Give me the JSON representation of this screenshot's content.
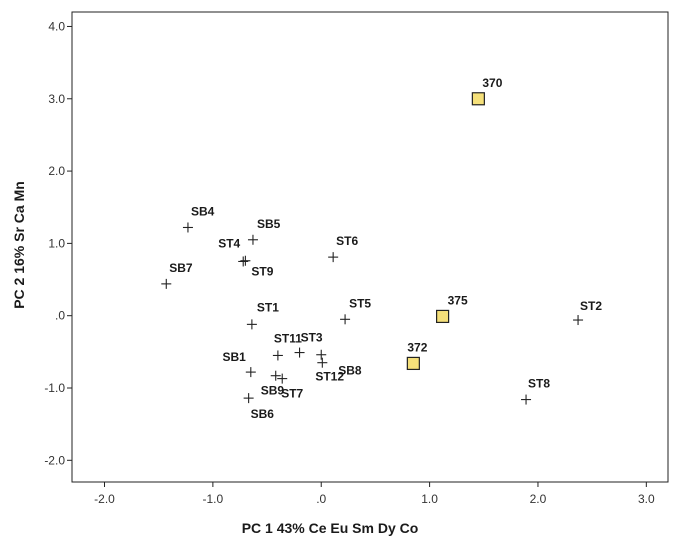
{
  "chart_data": {
    "type": "scatter",
    "title": "",
    "xlabel": "PC 1  43%  Ce Eu Sm Dy Co",
    "ylabel": "PC 2  16%  Sr Ca Mn",
    "xlim": [
      -2.3,
      3.2
    ],
    "ylim": [
      -2.3,
      4.2
    ],
    "x_ticks": [
      -2.0,
      -1.0,
      0.0,
      1.0,
      2.0,
      3.0
    ],
    "x_tick_labels": [
      "-2.0",
      "-1.0",
      ".0",
      "1.0",
      "2.0",
      "3.0"
    ],
    "y_ticks": [
      -2.0,
      -1.0,
      0.0,
      1.0,
      2.0,
      3.0,
      4.0
    ],
    "y_tick_labels": [
      "-2.0",
      "-1.0",
      ".0",
      "1.0",
      "2.0",
      "3.0",
      "4.0"
    ],
    "grid": false,
    "legend": "none",
    "colors": {
      "square_fill": "#f5e07a",
      "marker_stroke": "#222222"
    },
    "series": [
      {
        "marker": "plus",
        "points": [
          {
            "label": "SB4",
            "x": -1.23,
            "y": 1.22
          },
          {
            "label": "SB5",
            "x": -0.63,
            "y": 1.05
          },
          {
            "label": "ST4",
            "x": -0.72,
            "y": 0.75
          },
          {
            "label": "ST9",
            "x": -0.7,
            "y": 0.76
          },
          {
            "label": "SB7",
            "x": -1.43,
            "y": 0.44
          },
          {
            "label": "ST6",
            "x": 0.11,
            "y": 0.81
          },
          {
            "label": "ST1",
            "x": -0.64,
            "y": -0.12
          },
          {
            "label": "ST5",
            "x": 0.22,
            "y": -0.05
          },
          {
            "label": "ST11",
            "x": -0.4,
            "y": -0.55
          },
          {
            "label": "ST3",
            "x": -0.2,
            "y": -0.51
          },
          {
            "label": "SB8",
            "x": 0.0,
            "y": -0.54
          },
          {
            "label": "ST12",
            "x": 0.01,
            "y": -0.65
          },
          {
            "label": "SB1",
            "x": -0.65,
            "y": -0.78
          },
          {
            "label": "SB9",
            "x": -0.42,
            "y": -0.83
          },
          {
            "label": "ST7",
            "x": -0.36,
            "y": -0.87
          },
          {
            "label": "SB6",
            "x": -0.67,
            "y": -1.14
          },
          {
            "label": "ST2",
            "x": 2.37,
            "y": -0.06
          },
          {
            "label": "ST8",
            "x": 1.89,
            "y": -1.16
          }
        ]
      },
      {
        "marker": "square",
        "points": [
          {
            "label": "370",
            "x": 1.45,
            "y": 3.0
          },
          {
            "label": "375",
            "x": 1.12,
            "y": -0.01
          },
          {
            "label": "372",
            "x": 0.85,
            "y": -0.66
          }
        ]
      }
    ]
  }
}
